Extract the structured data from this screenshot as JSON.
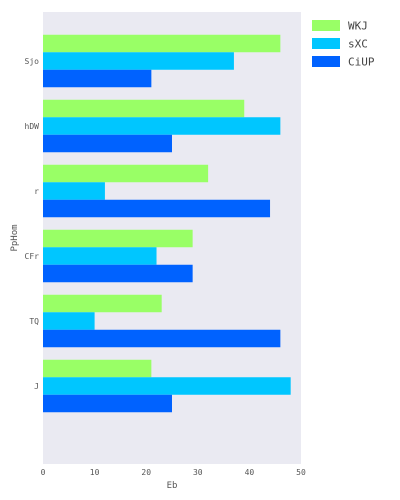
{
  "chart_data": {
    "type": "bar",
    "orientation": "horizontal",
    "title": "",
    "xlabel": "Eb",
    "ylabel": "PpHom",
    "xlim": [
      0,
      50
    ],
    "xticks": [
      "0",
      "10",
      "20",
      "30",
      "40",
      "50"
    ],
    "categories": [
      "Sjo",
      "hDW",
      "r",
      "CFr",
      "TQ",
      "J"
    ],
    "series": [
      {
        "name": "WKJ",
        "color": "#99ff66",
        "values": [
          46,
          39,
          32,
          29,
          23,
          21
        ]
      },
      {
        "name": "sXC",
        "color": "#00c6ff",
        "values": [
          37,
          46,
          12,
          22,
          10,
          48
        ]
      },
      {
        "name": "CiUP",
        "color": "#0062ff",
        "values": [
          21,
          25,
          44,
          29,
          46,
          25
        ]
      }
    ],
    "legend_position": "top-right",
    "grid": false,
    "background_color": "#eaeaf2"
  }
}
